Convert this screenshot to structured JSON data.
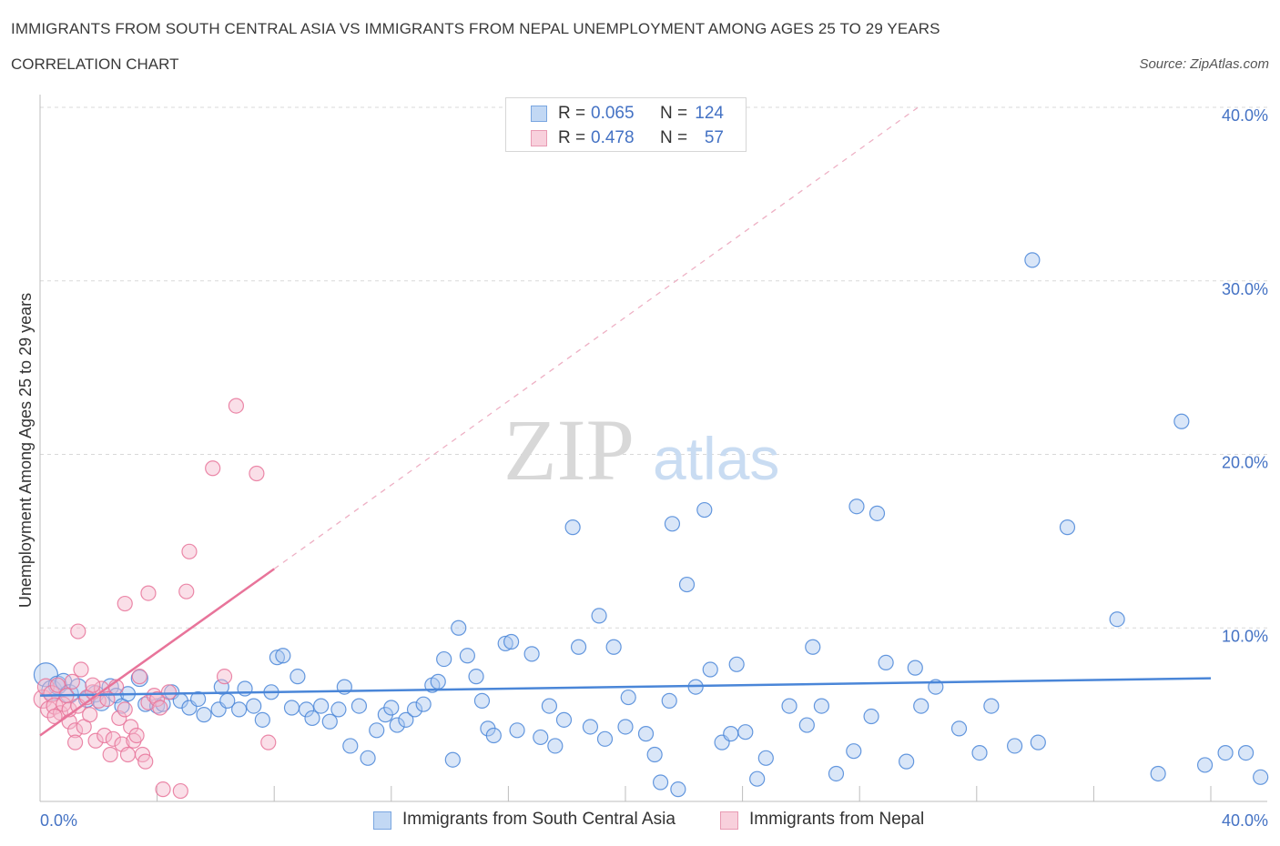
{
  "header": {
    "title": "IMMIGRANTS FROM SOUTH CENTRAL ASIA VS IMMIGRANTS FROM NEPAL UNEMPLOYMENT AMONG AGES 25 TO 29 YEARS",
    "subtitle": "CORRELATION CHART",
    "source": "Source: ZipAtlas.com"
  },
  "watermark": {
    "zip": "ZIP",
    "atlas": "atlas"
  },
  "colors": {
    "blue": "#4a86d8",
    "blue_fill": "#aac8f0",
    "pink": "#e8749a",
    "pink_fill": "#f5b8cc",
    "axis_text": "#4472c4"
  },
  "legend": {
    "rows": [
      {
        "r_label": "R =",
        "r_value": "0.065",
        "n_label": "N =",
        "n_value": "124"
      },
      {
        "r_label": "R =",
        "r_value": "0.478",
        "n_label": "N =",
        "n_value": "57"
      }
    ]
  },
  "chart_data": {
    "type": "scatter",
    "title": "Immigrants from South Central Asia vs Immigrants from Nepal Unemployment Among Ages 25 to 29 years",
    "xlabel": "",
    "ylabel": "Unemployment Among Ages 25 to 29 years",
    "xlim": [
      0,
      42
    ],
    "ylim": [
      0,
      40
    ],
    "x_tick_labels": [
      "0.0%",
      "40.0%"
    ],
    "y_ticks": [
      10,
      20,
      30,
      40
    ],
    "y_tick_labels": [
      "10.0%",
      "20.0%",
      "30.0%",
      "40.0%"
    ],
    "grid": true,
    "legend_position": "top-center",
    "series": [
      {
        "name": "Immigrants from South Central Asia",
        "color": "#4a86d8",
        "r": 0.065,
        "n": 124,
        "trend": {
          "x0": 0,
          "y0": 6.1,
          "x1": 40,
          "y1": 7.1
        },
        "points": [
          [
            0.2,
            7.3,
            6
          ],
          [
            0.4,
            6.4,
            4
          ],
          [
            0.6,
            6.7,
            3
          ],
          [
            0.8,
            6.9,
            2
          ],
          [
            1.0,
            6.2,
            3
          ],
          [
            1.3,
            6.6,
            2
          ],
          [
            1.6,
            5.9,
            2
          ],
          [
            1.9,
            6.2,
            2
          ],
          [
            2.1,
            5.7,
            2
          ],
          [
            2.4,
            6.6,
            2
          ],
          [
            2.6,
            6.1,
            1
          ],
          [
            2.8,
            5.5,
            1
          ],
          [
            3.0,
            6.2,
            1
          ],
          [
            3.4,
            7.1,
            2
          ],
          [
            3.6,
            5.6,
            1
          ],
          [
            4.0,
            5.5,
            1
          ],
          [
            4.2,
            5.6,
            1
          ],
          [
            4.5,
            6.3,
            1
          ],
          [
            4.8,
            5.8,
            1
          ],
          [
            5.1,
            5.4,
            1
          ],
          [
            5.4,
            5.9,
            1
          ],
          [
            5.6,
            5.0,
            1
          ],
          [
            6.1,
            5.3,
            1
          ],
          [
            6.2,
            6.6,
            1
          ],
          [
            6.4,
            5.8,
            1
          ],
          [
            6.8,
            5.3,
            1
          ],
          [
            7.0,
            6.5,
            1
          ],
          [
            7.3,
            5.5,
            1
          ],
          [
            7.6,
            4.7,
            1
          ],
          [
            7.9,
            6.3,
            1
          ],
          [
            8.1,
            8.3,
            1
          ],
          [
            8.3,
            8.4,
            1
          ],
          [
            8.6,
            5.4,
            1
          ],
          [
            8.8,
            7.2,
            1
          ],
          [
            9.1,
            5.3,
            1
          ],
          [
            9.3,
            4.8,
            1
          ],
          [
            9.6,
            5.5,
            1
          ],
          [
            9.9,
            4.6,
            1
          ],
          [
            10.2,
            5.3,
            1
          ],
          [
            10.4,
            6.6,
            1
          ],
          [
            10.6,
            3.2,
            1
          ],
          [
            10.9,
            5.5,
            1
          ],
          [
            11.2,
            2.5,
            1
          ],
          [
            11.5,
            4.1,
            1
          ],
          [
            11.8,
            5.0,
            1
          ],
          [
            12.0,
            5.4,
            1
          ],
          [
            12.2,
            4.4,
            1
          ],
          [
            12.5,
            4.7,
            1
          ],
          [
            12.8,
            5.3,
            1
          ],
          [
            13.1,
            5.6,
            1
          ],
          [
            13.4,
            6.7,
            1
          ],
          [
            13.6,
            6.9,
            1
          ],
          [
            13.8,
            8.2,
            1
          ],
          [
            14.1,
            2.4,
            1
          ],
          [
            14.3,
            10.0,
            1
          ],
          [
            14.6,
            8.4,
            1
          ],
          [
            14.9,
            7.2,
            1
          ],
          [
            15.1,
            5.8,
            1
          ],
          [
            15.3,
            4.2,
            1
          ],
          [
            15.5,
            3.8,
            1
          ],
          [
            15.9,
            9.1,
            1
          ],
          [
            16.1,
            9.2,
            1
          ],
          [
            16.3,
            4.1,
            1
          ],
          [
            16.8,
            8.5,
            1
          ],
          [
            17.1,
            3.7,
            1
          ],
          [
            17.4,
            5.5,
            1
          ],
          [
            17.6,
            3.2,
            1
          ],
          [
            17.9,
            4.7,
            1
          ],
          [
            18.2,
            15.8,
            1
          ],
          [
            18.4,
            8.9,
            1
          ],
          [
            18.8,
            4.3,
            1
          ],
          [
            19.1,
            10.7,
            1
          ],
          [
            19.3,
            3.6,
            1
          ],
          [
            19.6,
            8.9,
            1
          ],
          [
            20.0,
            4.3,
            1
          ],
          [
            20.1,
            6.0,
            1
          ],
          [
            20.7,
            3.9,
            1
          ],
          [
            21.0,
            2.7,
            1
          ],
          [
            21.2,
            1.1,
            1
          ],
          [
            21.5,
            5.8,
            1
          ],
          [
            21.6,
            16.0,
            1
          ],
          [
            21.8,
            0.7,
            1
          ],
          [
            22.1,
            12.5,
            1
          ],
          [
            22.4,
            6.6,
            1
          ],
          [
            22.7,
            16.8,
            1
          ],
          [
            22.9,
            7.6,
            1
          ],
          [
            23.3,
            3.4,
            1
          ],
          [
            23.6,
            3.9,
            1
          ],
          [
            23.8,
            7.9,
            1
          ],
          [
            24.1,
            4.0,
            1
          ],
          [
            24.5,
            1.3,
            1
          ],
          [
            24.8,
            2.5,
            1
          ],
          [
            25.6,
            5.5,
            1
          ],
          [
            26.2,
            4.4,
            1
          ],
          [
            26.4,
            8.9,
            1
          ],
          [
            26.7,
            5.5,
            1
          ],
          [
            27.2,
            1.6,
            1
          ],
          [
            27.8,
            2.9,
            1
          ],
          [
            27.9,
            17.0,
            1
          ],
          [
            28.4,
            4.9,
            1
          ],
          [
            28.6,
            16.6,
            1
          ],
          [
            28.9,
            8.0,
            1
          ],
          [
            29.6,
            2.3,
            1
          ],
          [
            29.9,
            7.7,
            1
          ],
          [
            30.1,
            5.5,
            1
          ],
          [
            30.6,
            6.6,
            1
          ],
          [
            31.4,
            4.2,
            1
          ],
          [
            32.1,
            2.8,
            1
          ],
          [
            32.5,
            5.5,
            1
          ],
          [
            33.3,
            3.2,
            1
          ],
          [
            33.9,
            31.2,
            1
          ],
          [
            34.1,
            3.4,
            1
          ],
          [
            35.1,
            15.8,
            1
          ],
          [
            36.8,
            10.5,
            1
          ],
          [
            38.2,
            1.6,
            1
          ],
          [
            39.0,
            21.9,
            1
          ],
          [
            39.8,
            2.1,
            1
          ],
          [
            40.5,
            2.8,
            1
          ],
          [
            41.2,
            2.8,
            1
          ],
          [
            41.7,
            1.4,
            1
          ]
        ]
      },
      {
        "name": "Immigrants from Nepal",
        "color": "#e8749a",
        "r": 0.478,
        "n": 57,
        "trend": {
          "x0": 0,
          "y0": 3.8,
          "x1": 8,
          "y1": 13.4
        },
        "trend_extended": {
          "x0": 8,
          "y0": 13.4,
          "x1": 30,
          "y1": 40
        },
        "points": [
          [
            0.1,
            5.9,
            3
          ],
          [
            0.2,
            6.6,
            2
          ],
          [
            0.3,
            5.3,
            2
          ],
          [
            0.4,
            6.2,
            2
          ],
          [
            0.5,
            5.5,
            2
          ],
          [
            0.6,
            6.7,
            1
          ],
          [
            0.7,
            5.1,
            1
          ],
          [
            0.8,
            5.6,
            1
          ],
          [
            0.9,
            6.1,
            1
          ],
          [
            1.0,
            4.6,
            1
          ],
          [
            1.0,
            5.3,
            1
          ],
          [
            1.1,
            6.9,
            1
          ],
          [
            1.2,
            4.1,
            1
          ],
          [
            1.2,
            3.4,
            1
          ],
          [
            1.3,
            5.5,
            1
          ],
          [
            1.4,
            7.6,
            1
          ],
          [
            1.5,
            4.3,
            1
          ],
          [
            1.6,
            6.0,
            1
          ],
          [
            1.7,
            5.0,
            1
          ],
          [
            1.8,
            6.3,
            1
          ],
          [
            1.9,
            3.5,
            1
          ],
          [
            2.0,
            5.8,
            1
          ],
          [
            2.1,
            6.5,
            1
          ],
          [
            2.2,
            3.8,
            1
          ],
          [
            2.3,
            5.9,
            1
          ],
          [
            2.4,
            2.7,
            1
          ],
          [
            2.5,
            3.6,
            1
          ],
          [
            2.6,
            6.6,
            1
          ],
          [
            2.7,
            4.8,
            1
          ],
          [
            2.8,
            3.3,
            1
          ],
          [
            2.9,
            5.3,
            1
          ],
          [
            3.0,
            2.7,
            1
          ],
          [
            3.1,
            4.3,
            1
          ],
          [
            3.2,
            3.5,
            1
          ],
          [
            3.3,
            3.8,
            1
          ],
          [
            3.4,
            7.2,
            1
          ],
          [
            3.5,
            2.7,
            1
          ],
          [
            3.6,
            2.3,
            1
          ],
          [
            3.7,
            5.7,
            1
          ],
          [
            3.9,
            6.1,
            1
          ],
          [
            4.0,
            5.9,
            1
          ],
          [
            4.1,
            5.4,
            1
          ],
          [
            4.2,
            0.7,
            1
          ],
          [
            4.4,
            6.3,
            1
          ],
          [
            4.8,
            0.6,
            1
          ],
          [
            5.0,
            12.1,
            1
          ],
          [
            5.1,
            14.4,
            1
          ],
          [
            5.9,
            19.2,
            1
          ],
          [
            6.3,
            7.2,
            1
          ],
          [
            6.7,
            22.8,
            1
          ],
          [
            7.4,
            18.9,
            1
          ],
          [
            7.8,
            3.4,
            1
          ],
          [
            1.3,
            9.8,
            1
          ],
          [
            1.8,
            6.7,
            1
          ],
          [
            2.9,
            11.4,
            1
          ],
          [
            3.7,
            12.0,
            1
          ],
          [
            0.5,
            4.9,
            1
          ]
        ]
      }
    ]
  },
  "bottom_legend": [
    {
      "label": "Immigrants from South Central Asia"
    },
    {
      "label": "Immigrants from Nepal"
    }
  ]
}
